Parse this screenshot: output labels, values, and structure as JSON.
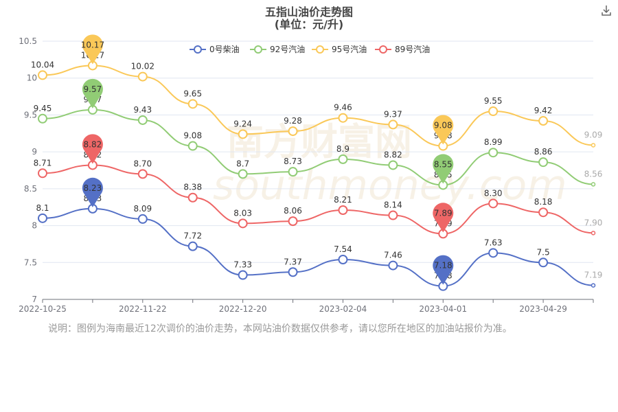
{
  "title": "五指山油价走势图",
  "subtitle": "(单位：元/升)",
  "download_icon": "download-icon",
  "note": "说明：图例为海南最近12次调价的油价走势，本网站油价数据仅供参考，请以您所在地区的加油站报价为准。",
  "watermark": "南方财富网 southmoney.com",
  "chart_data": {
    "type": "line",
    "title": "五指山油价走势图",
    "subtitle": "(单位：元/升)",
    "x_tick_labels": [
      "2022-10-25",
      "2022-11-22",
      "2022-12-20",
      "2023-02-04",
      "2023-04-01",
      "2023-04-29"
    ],
    "ylim": [
      7,
      10.5
    ],
    "y_ticks": [
      7,
      7.5,
      8,
      8.5,
      9,
      9.5,
      10,
      10.5
    ],
    "y_tick_labels": [
      "7",
      "7.5",
      "8",
      "8.5",
      "9",
      "9.5",
      "10",
      "10.5"
    ],
    "grid": "horizontal",
    "legend": "top-center",
    "series": [
      {
        "name": "0号柴油",
        "color": "#5470c6",
        "values": [
          8.1,
          8.23,
          8.09,
          7.72,
          7.33,
          7.37,
          7.54,
          7.46,
          7.18,
          7.63,
          7.5,
          7.19
        ],
        "labels": [
          "8.1",
          "8.23",
          "8.09",
          "7.72",
          "7.33",
          "7.37",
          "7.54",
          "7.46",
          "7.18",
          "7.63",
          "7.5",
          "7.19"
        ],
        "max_index": 1,
        "min_index": 8
      },
      {
        "name": "92号汽油",
        "color": "#91cc75",
        "values": [
          9.45,
          9.57,
          9.43,
          9.08,
          8.7,
          8.73,
          8.9,
          8.82,
          8.55,
          8.99,
          8.86,
          8.56
        ],
        "labels": [
          "9.45",
          "9.57",
          "9.43",
          "9.08",
          "8.7",
          "8.73",
          "8.9",
          "8.82",
          "8.55",
          "8.99",
          "8.86",
          "8.56"
        ],
        "max_index": 1,
        "min_index": 8
      },
      {
        "name": "95号汽油",
        "color": "#fac858",
        "values": [
          10.04,
          10.17,
          10.02,
          9.65,
          9.24,
          9.28,
          9.46,
          9.37,
          9.08,
          9.55,
          9.42,
          9.09
        ],
        "labels": [
          "10.04",
          "10.17",
          "10.02",
          "9.65",
          "9.24",
          "9.28",
          "9.46",
          "9.37",
          "9.08",
          "9.55",
          "9.42",
          "9.09"
        ],
        "max_index": 1,
        "min_index": 8
      },
      {
        "name": "89号汽油",
        "color": "#ee6666",
        "values": [
          8.71,
          8.82,
          8.7,
          8.38,
          8.03,
          8.06,
          8.21,
          8.14,
          7.89,
          8.3,
          8.18,
          7.9
        ],
        "labels": [
          "8.71",
          "8.82",
          "8.70",
          "8.38",
          "8.03",
          "8.06",
          "8.21",
          "8.14",
          "7.89",
          "8.30",
          "8.18",
          "7.90"
        ],
        "max_index": 1,
        "min_index": 8
      }
    ]
  }
}
